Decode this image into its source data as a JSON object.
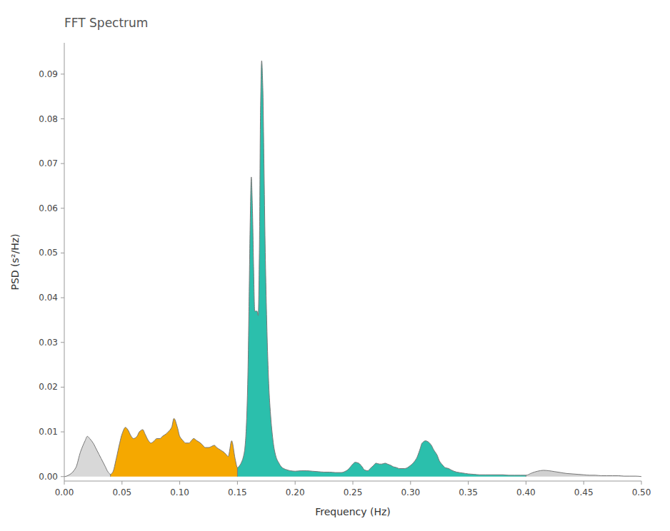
{
  "chart_data": {
    "type": "area",
    "title": "FFT Spectrum",
    "x_label": "Frequency (Hz)",
    "y_label": "PSD (s²/Hz)",
    "x": [
      0.0,
      0.005,
      0.01,
      0.014,
      0.018,
      0.02,
      0.022,
      0.025,
      0.028,
      0.03,
      0.032,
      0.035,
      0.038,
      0.04,
      0.042,
      0.045,
      0.048,
      0.05,
      0.053,
      0.055,
      0.058,
      0.06,
      0.063,
      0.065,
      0.068,
      0.07,
      0.073,
      0.075,
      0.078,
      0.08,
      0.083,
      0.085,
      0.088,
      0.09,
      0.093,
      0.095,
      0.098,
      0.1,
      0.103,
      0.105,
      0.108,
      0.11,
      0.112,
      0.115,
      0.118,
      0.12,
      0.122,
      0.125,
      0.128,
      0.13,
      0.132,
      0.135,
      0.138,
      0.14,
      0.142,
      0.145,
      0.148,
      0.15,
      0.152,
      0.154,
      0.156,
      0.157,
      0.158,
      0.159,
      0.16,
      0.161,
      0.162,
      0.163,
      0.164,
      0.165,
      0.166,
      0.167,
      0.168,
      0.169,
      0.17,
      0.171,
      0.172,
      0.173,
      0.174,
      0.175,
      0.176,
      0.177,
      0.178,
      0.18,
      0.182,
      0.184,
      0.186,
      0.188,
      0.19,
      0.193,
      0.196,
      0.2,
      0.205,
      0.21,
      0.215,
      0.22,
      0.225,
      0.23,
      0.235,
      0.24,
      0.245,
      0.248,
      0.25,
      0.252,
      0.255,
      0.258,
      0.26,
      0.263,
      0.265,
      0.268,
      0.27,
      0.273,
      0.275,
      0.278,
      0.28,
      0.283,
      0.285,
      0.288,
      0.29,
      0.295,
      0.3,
      0.305,
      0.308,
      0.31,
      0.313,
      0.315,
      0.318,
      0.32,
      0.323,
      0.325,
      0.328,
      0.33,
      0.333,
      0.335,
      0.34,
      0.345,
      0.35,
      0.355,
      0.36,
      0.365,
      0.37,
      0.375,
      0.38,
      0.385,
      0.39,
      0.395,
      0.4,
      0.405,
      0.41,
      0.415,
      0.42,
      0.425,
      0.43,
      0.435,
      0.44,
      0.445,
      0.45,
      0.455,
      0.46,
      0.465,
      0.47,
      0.475,
      0.48,
      0.485,
      0.49,
      0.495,
      0.5
    ],
    "values": [
      0.0,
      0.0005,
      0.002,
      0.0055,
      0.008,
      0.009,
      0.0085,
      0.0075,
      0.006,
      0.005,
      0.004,
      0.0025,
      0.001,
      0.0005,
      0.001,
      0.004,
      0.0075,
      0.0095,
      0.011,
      0.0105,
      0.009,
      0.0085,
      0.009,
      0.01,
      0.0105,
      0.0095,
      0.008,
      0.0075,
      0.008,
      0.0085,
      0.0085,
      0.009,
      0.0095,
      0.01,
      0.011,
      0.013,
      0.011,
      0.009,
      0.008,
      0.0075,
      0.0075,
      0.008,
      0.0085,
      0.008,
      0.0075,
      0.007,
      0.0065,
      0.0065,
      0.0068,
      0.007,
      0.0065,
      0.006,
      0.0055,
      0.005,
      0.0045,
      0.008,
      0.004,
      0.002,
      0.0025,
      0.0035,
      0.0055,
      0.008,
      0.013,
      0.022,
      0.038,
      0.056,
      0.067,
      0.06,
      0.047,
      0.037,
      0.037,
      0.037,
      0.036,
      0.05,
      0.082,
      0.093,
      0.087,
      0.07,
      0.052,
      0.039,
      0.029,
      0.0215,
      0.0165,
      0.01,
      0.006,
      0.004,
      0.003,
      0.0022,
      0.0018,
      0.0015,
      0.0013,
      0.0012,
      0.0013,
      0.0013,
      0.0012,
      0.0011,
      0.001,
      0.001,
      0.0009,
      0.0009,
      0.0014,
      0.0022,
      0.0028,
      0.0032,
      0.003,
      0.0022,
      0.0015,
      0.0013,
      0.0018,
      0.0025,
      0.003,
      0.0028,
      0.0028,
      0.003,
      0.0028,
      0.0025,
      0.0022,
      0.002,
      0.0018,
      0.0018,
      0.0025,
      0.004,
      0.006,
      0.0075,
      0.008,
      0.0078,
      0.007,
      0.006,
      0.0048,
      0.0035,
      0.0025,
      0.002,
      0.0018,
      0.0015,
      0.001,
      0.0008,
      0.0006,
      0.0005,
      0.0004,
      0.0004,
      0.0004,
      0.0004,
      0.0004,
      0.0003,
      0.0003,
      0.0003,
      0.0003,
      0.0008,
      0.0012,
      0.0014,
      0.0013,
      0.0011,
      0.0009,
      0.0007,
      0.0006,
      0.0005,
      0.0004,
      0.0003,
      0.0003,
      0.0002,
      0.0002,
      0.0002,
      0.0002,
      0.0001,
      0.0001,
      0.0001,
      0.0
    ],
    "boundaries": [
      0.04,
      0.15,
      0.4
    ],
    "colors": [
      "#d8d8d8",
      "#F5A800",
      "#2BBFAC",
      "#d0d0d0"
    ],
    "color": "#777777",
    "xlim": [
      0.0,
      0.5
    ],
    "ylim": [
      -0.001,
      0.097
    ],
    "xticks": [
      {
        "value": 0.0,
        "label": "0.00"
      },
      {
        "value": 0.05,
        "label": "0.05"
      },
      {
        "value": 0.1,
        "label": "0.10"
      },
      {
        "value": 0.15,
        "label": "0.15"
      },
      {
        "value": 0.2,
        "label": "0.20"
      },
      {
        "value": 0.25,
        "label": "0.25"
      },
      {
        "value": 0.3,
        "label": "0.30"
      },
      {
        "value": 0.35,
        "label": "0.35"
      },
      {
        "value": 0.4,
        "label": "0.40"
      },
      {
        "value": 0.45,
        "label": "0.45"
      },
      {
        "value": 0.5,
        "label": "0.50"
      }
    ],
    "yticks": [
      {
        "value": 0.0,
        "label": "0.00"
      },
      {
        "value": 0.01,
        "label": "0.01"
      },
      {
        "value": 0.02,
        "label": "0.02"
      },
      {
        "value": 0.03,
        "label": "0.03"
      },
      {
        "value": 0.04,
        "label": "0.04"
      },
      {
        "value": 0.05,
        "label": "0.05"
      },
      {
        "value": 0.06,
        "label": "0.06"
      },
      {
        "value": 0.07,
        "label": "0.07"
      },
      {
        "value": 0.08,
        "label": "0.08"
      },
      {
        "value": 0.09,
        "label": "0.09"
      }
    ],
    "grid": false
  }
}
